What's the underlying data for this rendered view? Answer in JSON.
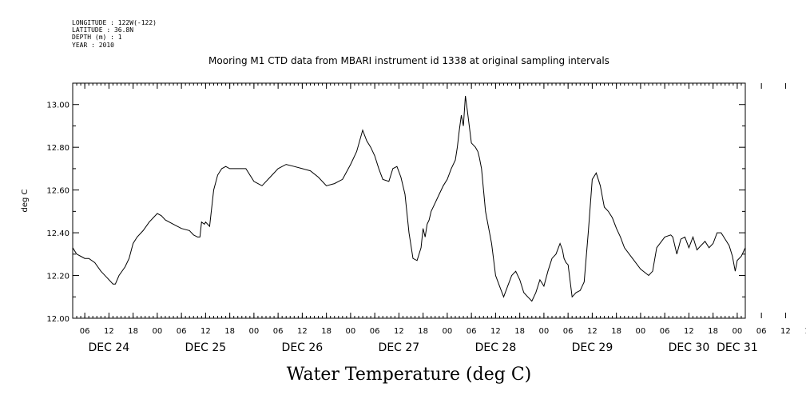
{
  "header": {
    "longitude": "LONGITUDE : 122W(-122)",
    "latitude": "LATITUDE : 36.8N",
    "depth": "DEPTH (m) : 1",
    "year": "YEAR : 2010"
  },
  "chart_data": {
    "type": "line",
    "title": "Mooring M1 CTD data from MBARI instrument id 1338 at original sampling intervals",
    "xlabel": "Water Temperature (deg C)",
    "ylabel": "deg C",
    "ylim": [
      12.0,
      13.1
    ],
    "y_ticks": [
      "12.00",
      "12.20",
      "12.40",
      "12.60",
      "12.80",
      "13.00"
    ],
    "x_hour_ticks": [
      "06",
      "12",
      "18",
      "00",
      "06",
      "12",
      "18",
      "00",
      "06",
      "12",
      "18",
      "00",
      "06",
      "12",
      "18",
      "00",
      "06",
      "12",
      "18",
      "00",
      "06",
      "12",
      "18",
      "00",
      "06",
      "12",
      "18",
      "00",
      "06",
      "12",
      "18",
      "00"
    ],
    "x_day_labels": [
      "DEC 24",
      "DEC 25",
      "DEC 26",
      "DEC 27",
      "DEC 28",
      "DEC 29",
      "DEC 30",
      "DEC 31"
    ],
    "x_unit": "hours since DEC 24 00:00",
    "xlim": [
      3.0,
      170.0
    ],
    "grid": false,
    "series": [
      {
        "x": [
          3.0,
          4.0,
          5.0,
          6.0,
          7.0,
          8.5,
          10.0,
          11.5,
          13.0,
          13.6,
          14.5,
          16.0,
          17.0,
          18.0,
          19.0,
          20.5,
          22.0,
          23.0,
          24.0,
          25.0,
          26.0,
          28.0,
          30.0,
          32.0,
          33.0,
          34.0,
          34.6,
          35.0,
          35.7,
          36.0,
          37.0,
          38.0,
          39.0,
          40.0,
          41.0,
          42.0,
          44.0,
          46.0,
          48.0,
          49.0,
          50.0,
          52.0,
          54.0,
          56.0,
          58.0,
          60.0,
          62.0,
          64.0,
          66.0,
          68.0,
          70.0,
          72.0,
          73.5,
          75.0,
          76.0,
          77.0,
          78.0,
          79.0,
          80.0,
          81.5,
          82.5,
          83.5,
          84.5,
          85.5,
          86.5,
          87.5,
          88.5,
          89.5,
          90.0,
          90.5,
          91.0,
          91.5,
          92.0,
          93.0,
          94.0,
          95.0,
          96.0,
          97.0,
          98.0,
          98.5,
          99.0,
          99.5,
          100.0,
          100.5,
          101.0,
          102.0,
          103.0,
          103.6,
          104.0,
          104.5,
          105.0,
          105.5,
          106.0,
          107.0,
          108.0,
          109.0,
          110.0,
          111.0,
          112.0,
          113.0,
          114.0,
          115.0,
          116.0,
          117.0,
          118.0,
          119.0,
          120.0,
          121.0,
          122.0,
          123.0,
          124.0,
          124.6,
          125.0,
          125.5,
          126.0,
          127.0,
          128.0,
          129.0,
          130.0,
          131.0,
          132.0,
          133.0,
          134.0,
          135.0,
          136.0,
          137.0,
          138.0,
          139.0,
          140.0,
          142.0,
          144.0,
          146.0,
          147.0,
          148.0,
          150.0,
          151.5,
          152.0,
          153.0,
          154.0,
          155.0,
          156.0,
          157.0,
          158.0,
          159.0,
          160.0,
          161.0,
          162.0,
          163.0,
          164.0,
          165.0,
          166.0,
          166.8,
          167.5,
          168.0,
          169.0,
          170.0
        ],
        "y": [
          12.33,
          12.3,
          12.29,
          12.28,
          12.28,
          12.26,
          12.22,
          12.19,
          12.16,
          12.16,
          12.2,
          12.24,
          12.28,
          12.35,
          12.38,
          12.41,
          12.45,
          12.47,
          12.49,
          12.48,
          12.46,
          12.44,
          12.42,
          12.41,
          12.39,
          12.38,
          12.38,
          12.45,
          12.44,
          12.45,
          12.43,
          12.6,
          12.67,
          12.7,
          12.71,
          12.7,
          12.7,
          12.7,
          12.64,
          12.63,
          12.62,
          12.66,
          12.7,
          12.72,
          12.71,
          12.7,
          12.69,
          12.66,
          12.62,
          12.63,
          12.65,
          12.72,
          12.78,
          12.88,
          12.83,
          12.8,
          12.76,
          12.7,
          12.65,
          12.64,
          12.7,
          12.71,
          12.66,
          12.58,
          12.4,
          12.28,
          12.27,
          12.33,
          12.42,
          12.38,
          12.44,
          12.46,
          12.5,
          12.54,
          12.58,
          12.62,
          12.65,
          12.7,
          12.74,
          12.8,
          12.88,
          12.95,
          12.9,
          13.04,
          12.97,
          12.82,
          12.8,
          12.78,
          12.75,
          12.7,
          12.6,
          12.5,
          12.45,
          12.35,
          12.2,
          12.15,
          12.1,
          12.15,
          12.2,
          12.22,
          12.18,
          12.12,
          12.1,
          12.08,
          12.12,
          12.18,
          12.15,
          12.22,
          12.28,
          12.3,
          12.35,
          12.32,
          12.28,
          12.26,
          12.25,
          12.1,
          12.12,
          12.13,
          12.17,
          12.4,
          12.65,
          12.68,
          12.62,
          12.52,
          12.5,
          12.47,
          12.42,
          12.38,
          12.33,
          12.28,
          12.23,
          12.2,
          12.22,
          12.33,
          12.38,
          12.39,
          12.38,
          12.3,
          12.37,
          12.38,
          12.33,
          12.38,
          12.32,
          12.34,
          12.36,
          12.33,
          12.35,
          12.4,
          12.4,
          12.37,
          12.34,
          12.29,
          12.22,
          12.27,
          12.29,
          12.33
        ]
      }
    ]
  }
}
